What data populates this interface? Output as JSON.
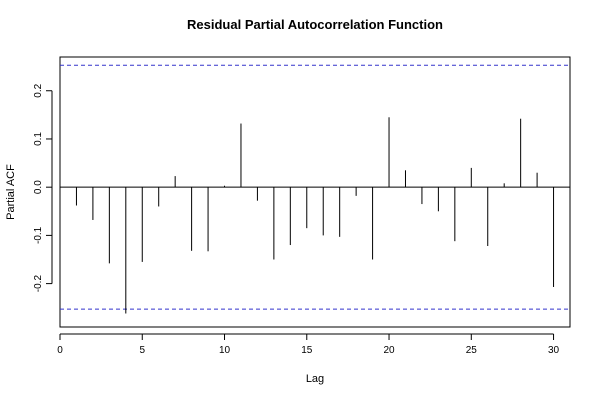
{
  "chart_data": {
    "type": "bar",
    "title": "Residual Partial Autocorrelation Function",
    "xlabel": "Lag",
    "ylabel": "Partial ACF",
    "xlim": [
      0,
      31
    ],
    "ylim": [
      -0.29,
      0.27
    ],
    "x_ticks": [
      0,
      5,
      10,
      15,
      20,
      25,
      30
    ],
    "y_ticks": [
      -0.2,
      -0.1,
      0.0,
      0.1,
      0.2
    ],
    "x_tick_labels": [
      "0",
      "5",
      "10",
      "15",
      "20",
      "25",
      "30"
    ],
    "y_tick_labels": [
      "-0.2",
      "-0.1",
      "0.0",
      "0.1",
      "0.2"
    ],
    "confidence_bounds": [
      0.253,
      -0.253
    ],
    "bound_color": "#3333cc",
    "bar_color": "#000000",
    "lags": [
      1,
      2,
      3,
      4,
      5,
      6,
      7,
      8,
      9,
      10,
      11,
      12,
      13,
      14,
      15,
      16,
      17,
      18,
      19,
      20,
      21,
      22,
      23,
      24,
      25,
      26,
      27,
      28,
      29,
      30
    ],
    "values": [
      -0.038,
      -0.068,
      -0.158,
      -0.262,
      -0.155,
      -0.04,
      0.023,
      -0.132,
      -0.133,
      0.003,
      0.132,
      -0.028,
      -0.15,
      -0.12,
      -0.085,
      -0.1,
      -0.103,
      -0.018,
      -0.15,
      0.145,
      0.035,
      -0.035,
      -0.05,
      -0.112,
      0.04,
      -0.122,
      0.008,
      0.142,
      0.03,
      -0.207
    ]
  }
}
